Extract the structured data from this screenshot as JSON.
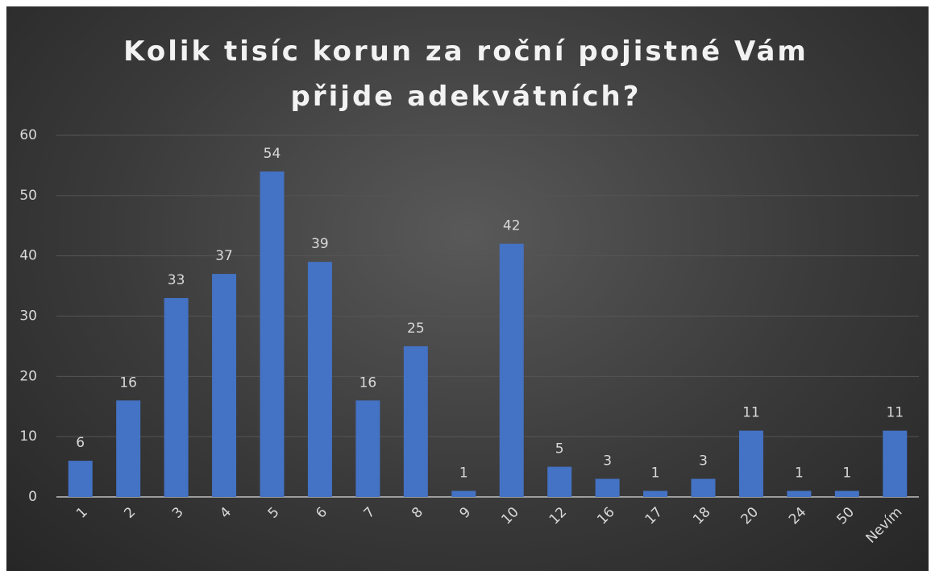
{
  "chart_data": {
    "type": "bar",
    "title": "Kolik tisíc korun za roční pojistné Vám přijde adekvátních?",
    "categories": [
      "1",
      "2",
      "3",
      "4",
      "5",
      "6",
      "7",
      "8",
      "9",
      "10",
      "12",
      "16",
      "17",
      "18",
      "20",
      "24",
      "50",
      "Nevím"
    ],
    "values": [
      6,
      16,
      33,
      37,
      54,
      39,
      16,
      25,
      1,
      42,
      5,
      3,
      1,
      3,
      11,
      1,
      1,
      11
    ],
    "color": "#4472c4",
    "ylim": [
      0,
      60
    ],
    "yticks": [
      0,
      10,
      20,
      30,
      40,
      50,
      60
    ],
    "grid": true
  }
}
